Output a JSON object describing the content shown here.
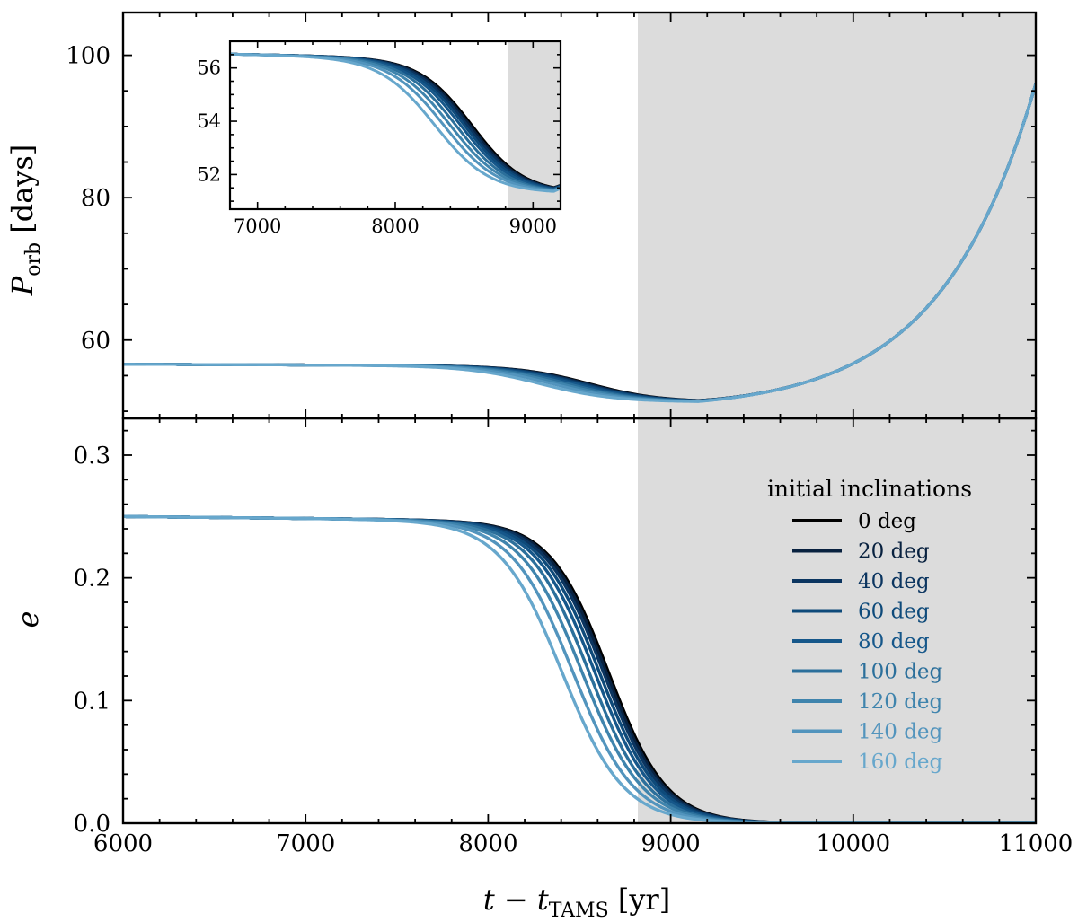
{
  "chart_data": {
    "type": "line",
    "colors": [
      "#000000",
      "#08213f",
      "#0b3560",
      "#0e4a7a",
      "#16578a",
      "#2b6f9b",
      "#3f84ad",
      "#5294bd",
      "#67a7cc"
    ],
    "shaded_region_start": 8820,
    "xlabel": {
      "main": "t − t",
      "sub": "TAMS",
      "unit": " [yr]"
    },
    "top_panel": {
      "ylabel": {
        "main": "P",
        "sub": "orb",
        "unit": " [days]"
      },
      "xlim": [
        6000,
        11000
      ],
      "ylim": [
        49,
        106
      ],
      "yticks": [
        "60",
        "80",
        "100"
      ],
      "series_note": "orbital period vs time, one curve per initial inclination"
    },
    "bottom_panel": {
      "ylabel": "e",
      "xlim": [
        6000,
        11000
      ],
      "ylim": [
        0,
        0.33
      ],
      "yticks": [
        "0.0",
        "0.1",
        "0.2",
        "0.3"
      ],
      "xticks": [
        "6000",
        "7000",
        "8000",
        "9000",
        "10000",
        "11000"
      ]
    },
    "inset": {
      "xlim": [
        6800,
        9200
      ],
      "ylim": [
        50.7,
        57.0
      ],
      "xticks": [
        "7000",
        "8000",
        "9000"
      ],
      "yticks": [
        "52",
        "54",
        "56"
      ]
    },
    "legend": {
      "title": "initial inclinations",
      "position": "right",
      "labels": [
        "0 deg",
        "20 deg",
        "40 deg",
        "60 deg",
        "80 deg",
        "100 deg",
        "120 deg",
        "140 deg",
        "160 deg"
      ]
    },
    "series": [
      {
        "name": "0 deg",
        "e_midpoint": 8660,
        "e_width": 160,
        "p_midpoint": 8560,
        "p_width": 190
      },
      {
        "name": "20 deg",
        "e_midpoint": 8648,
        "e_width": 160,
        "p_midpoint": 8545,
        "p_width": 190
      },
      {
        "name": "40 deg",
        "e_midpoint": 8632,
        "e_width": 161,
        "p_midpoint": 8527,
        "p_width": 191
      },
      {
        "name": "60 deg",
        "e_midpoint": 8610,
        "e_width": 162,
        "p_midpoint": 8505,
        "p_width": 192
      },
      {
        "name": "80 deg",
        "e_midpoint": 8585,
        "e_width": 163,
        "p_midpoint": 8478,
        "p_width": 193
      },
      {
        "name": "100 deg",
        "e_midpoint": 8553,
        "e_width": 164,
        "p_midpoint": 8443,
        "p_width": 194
      },
      {
        "name": "120 deg",
        "e_midpoint": 8515,
        "e_width": 166,
        "p_midpoint": 8402,
        "p_width": 196
      },
      {
        "name": "140 deg",
        "e_midpoint": 8465,
        "e_width": 168,
        "p_midpoint": 8355,
        "p_width": 198
      },
      {
        "name": "160 deg",
        "e_midpoint": 8405,
        "e_width": 170,
        "p_midpoint": 8290,
        "p_width": 200
      }
    ],
    "model": {
      "e_initial": 0.25,
      "e_drift": 0.004,
      "p_initial": 56.6,
      "p_min": 51.3,
      "p_drift": 0.25,
      "p_final": 96,
      "p_growth_scale": 520
    }
  }
}
